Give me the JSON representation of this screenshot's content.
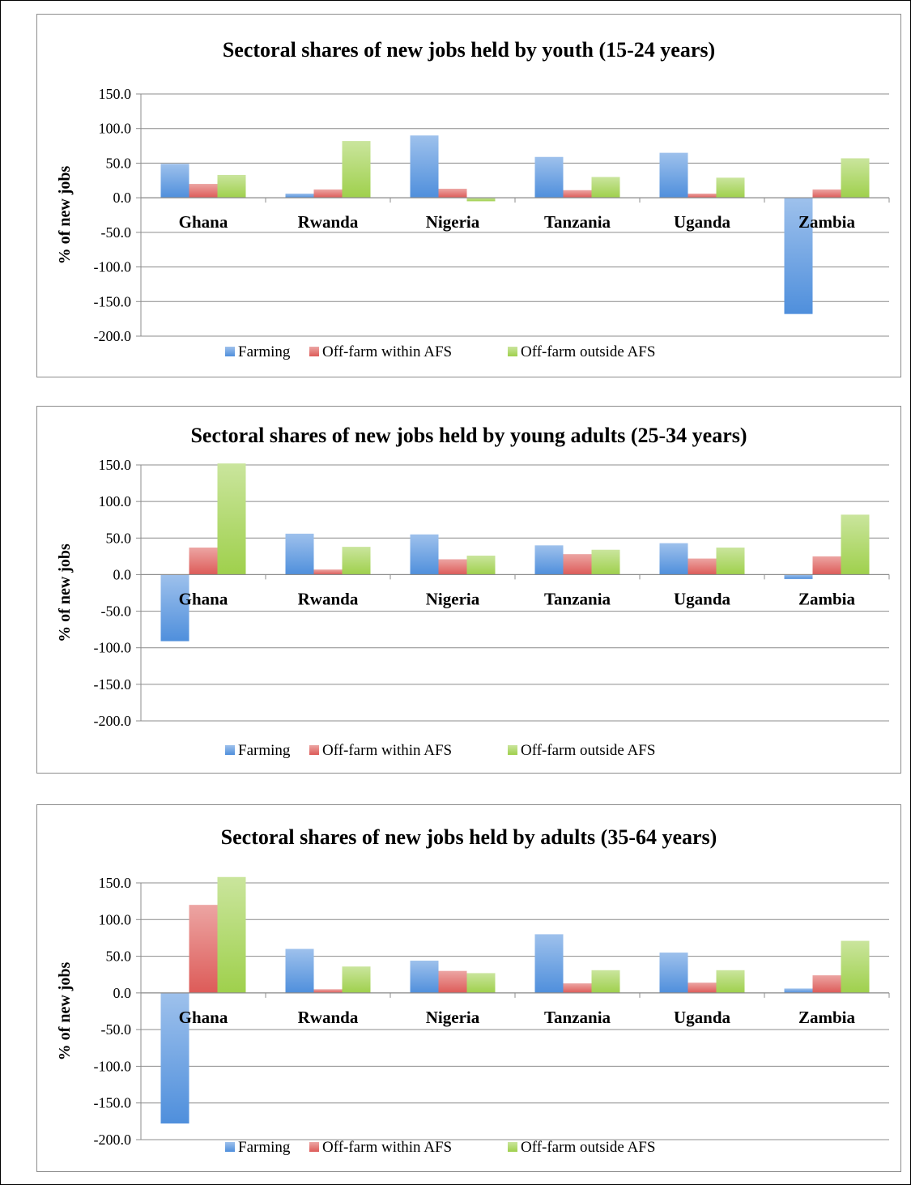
{
  "chart_data": [
    {
      "type": "bar",
      "title": "Sectoral shares of new jobs held by youth (15-24 years)",
      "ylabel": "% of new jobs",
      "xlabel": "",
      "ylim": [
        -200,
        150
      ],
      "yticks": [
        "150.0",
        "100.0",
        "50.0",
        "0.0",
        "-50.0",
        "-100.0",
        "-150.0",
        "-200.0"
      ],
      "categories": [
        "Ghana",
        "Rwanda",
        "Nigeria",
        "Tanzania",
        "Uganda",
        "Zambia"
      ],
      "series": [
        {
          "name": "Farming",
          "color": "#4f8fdc",
          "values": [
            49,
            6,
            90,
            59,
            65,
            -168
          ]
        },
        {
          "name": "Off-farm within AFS",
          "color": "#dd5b58",
          "values": [
            20,
            12,
            13,
            11,
            6,
            12
          ]
        },
        {
          "name": "Off-farm outside AFS",
          "color": "#9fd04c",
          "values": [
            33,
            82,
            -5,
            30,
            29,
            57
          ]
        }
      ],
      "grid": true,
      "legend_position": "bottom"
    },
    {
      "type": "bar",
      "title": "Sectoral shares of new jobs held by young adults (25-34 years)",
      "ylabel": "% of new jobs",
      "xlabel": "",
      "ylim": [
        -200,
        150
      ],
      "yticks": [
        "150.0",
        "100.0",
        "50.0",
        "0.0",
        "-50.0",
        "-100.0",
        "-150.0",
        "-200.0"
      ],
      "categories": [
        "Ghana",
        "Rwanda",
        "Nigeria",
        "Tanzania",
        "Uganda",
        "Zambia"
      ],
      "series": [
        {
          "name": "Farming",
          "color": "#4f8fdc",
          "values": [
            -91,
            56,
            55,
            40,
            43,
            -6
          ]
        },
        {
          "name": "Off-farm within AFS",
          "color": "#dd5b58",
          "values": [
            37,
            7,
            21,
            28,
            22,
            25
          ]
        },
        {
          "name": "Off-farm outside AFS",
          "color": "#9fd04c",
          "values": [
            152,
            38,
            26,
            34,
            37,
            82
          ]
        }
      ],
      "grid": true,
      "legend_position": "bottom"
    },
    {
      "type": "bar",
      "title": "Sectoral shares of new jobs held by adults (35-64 years)",
      "ylabel": "% of new jobs",
      "xlabel": "",
      "ylim": [
        -200,
        150
      ],
      "yticks": [
        "150.0",
        "100.0",
        "50.0",
        "0.0",
        "-50.0",
        "-100.0",
        "-150.0",
        "-200.0"
      ],
      "categories": [
        "Ghana",
        "Rwanda",
        "Nigeria",
        "Tanzania",
        "Uganda",
        "Zambia"
      ],
      "series": [
        {
          "name": "Farming",
          "color": "#4f8fdc",
          "values": [
            -178,
            60,
            44,
            80,
            55,
            6
          ]
        },
        {
          "name": "Off-farm within AFS",
          "color": "#dd5b58",
          "values": [
            120,
            5,
            30,
            13,
            14,
            24
          ]
        },
        {
          "name": "Off-farm outside AFS",
          "color": "#9fd04c",
          "values": [
            158,
            36,
            27,
            31,
            31,
            71
          ]
        }
      ],
      "grid": true,
      "legend_position": "bottom"
    }
  ]
}
